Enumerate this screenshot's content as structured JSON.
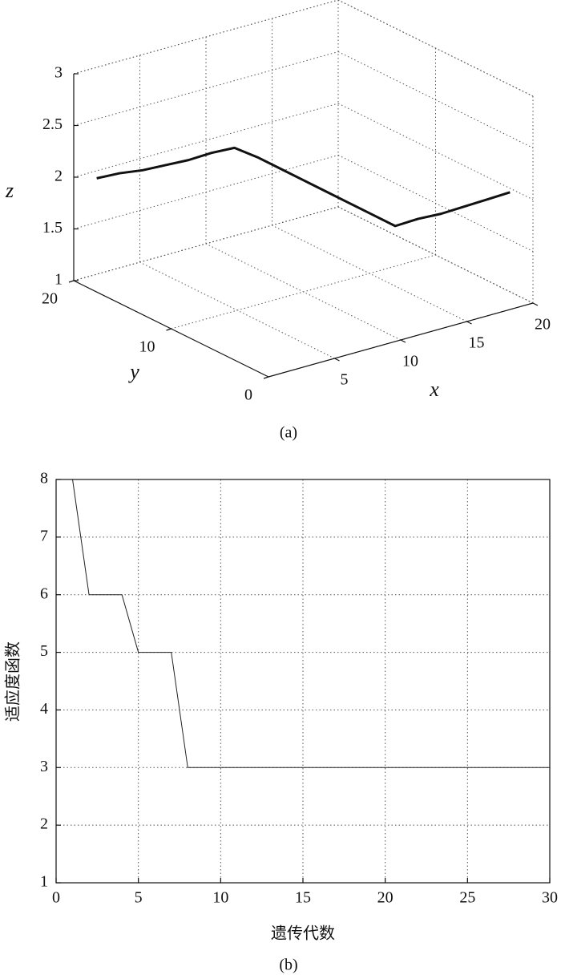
{
  "chart_data": [
    {
      "type": "line3d",
      "caption": "(a)",
      "xlabel": "x",
      "ylabel": "y",
      "zlabel": "z",
      "x": [
        1,
        2,
        3,
        4,
        5,
        6,
        7,
        8,
        9,
        10,
        11,
        12,
        13,
        14,
        15,
        16,
        17,
        18,
        19
      ],
      "y": [
        19,
        18,
        17,
        16,
        15,
        14,
        13,
        12,
        11,
        10,
        9,
        8,
        7,
        6,
        5,
        4,
        3,
        2,
        1
      ],
      "z": [
        2.0,
        2.06,
        2.1,
        2.16,
        2.22,
        2.3,
        2.36,
        2.28,
        2.18,
        2.08,
        1.98,
        1.88,
        1.78,
        1.68,
        1.76,
        1.82,
        1.9,
        1.98,
        2.06
      ],
      "color": "#111111",
      "xlim": [
        0,
        20
      ],
      "ylim": [
        0,
        20
      ],
      "zlim": [
        1,
        3
      ],
      "xticks": [
        5,
        10,
        15,
        20
      ],
      "yticks": [
        0,
        10,
        20
      ],
      "zticks": [
        1,
        1.5,
        2,
        2.5,
        3
      ],
      "grid": true
    },
    {
      "type": "line",
      "caption": "(b)",
      "xlabel": "遗传代数",
      "ylabel": "适应度函数",
      "x": [
        1,
        2,
        3,
        4,
        5,
        6,
        7,
        8,
        9,
        10,
        11,
        12,
        13,
        14,
        15,
        16,
        17,
        18,
        19,
        20,
        21,
        22,
        23,
        24,
        25,
        26,
        27,
        28,
        29,
        30
      ],
      "values": [
        8,
        6,
        6,
        6,
        5,
        5,
        5,
        3,
        3,
        3,
        3,
        3,
        3,
        3,
        3,
        3,
        3,
        3,
        3,
        3,
        3,
        3,
        3,
        3,
        3,
        3,
        3,
        3,
        3,
        3
      ],
      "color": "#222222",
      "xlim": [
        0,
        30
      ],
      "ylim": [
        1,
        8
      ],
      "xticks": [
        0,
        5,
        10,
        15,
        20,
        25,
        30
      ],
      "yticks": [
        1,
        2,
        3,
        4,
        5,
        6,
        7,
        8
      ],
      "grid": true
    }
  ]
}
